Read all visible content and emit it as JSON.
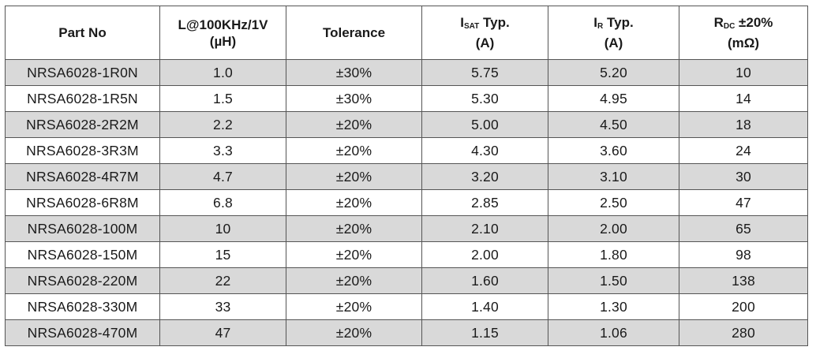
{
  "headers": [
    {
      "lines": [
        "Part No"
      ]
    },
    {
      "lines": [
        "L@100KHz/1V",
        "(µH)"
      ]
    },
    {
      "lines": [
        "Tolerance"
      ]
    },
    {
      "main": "I",
      "sub": "SAT",
      "suffix": " Typ.",
      "unit": "(A)"
    },
    {
      "main": "I",
      "sub": "R",
      "suffix": " Typ.",
      "unit": "(A)"
    },
    {
      "main": "R",
      "sub": "DC",
      "suffix": " ±20%",
      "unit": "(mΩ)"
    }
  ],
  "rows": [
    [
      "NRSA6028-1R0N",
      "1.0",
      "±30%",
      "5.75",
      "5.20",
      "10"
    ],
    [
      "NRSA6028-1R5N",
      "1.5",
      "±30%",
      "5.30",
      "4.95",
      "14"
    ],
    [
      "NRSA6028-2R2M",
      "2.2",
      "±20%",
      "5.00",
      "4.50",
      "18"
    ],
    [
      "NRSA6028-3R3M",
      "3.3",
      "±20%",
      "4.30",
      "3.60",
      "24"
    ],
    [
      "NRSA6028-4R7M",
      "4.7",
      "±20%",
      "3.20",
      "3.10",
      "30"
    ],
    [
      "NRSA6028-6R8M",
      "6.8",
      "±20%",
      "2.85",
      "2.50",
      "47"
    ],
    [
      "NRSA6028-100M",
      "10",
      "±20%",
      "2.10",
      "2.00",
      "65"
    ],
    [
      "NRSA6028-150M",
      "15",
      "±20%",
      "2.00",
      "1.80",
      "98"
    ],
    [
      "NRSA6028-220M",
      "22",
      "±20%",
      "1.60",
      "1.50",
      "138"
    ],
    [
      "NRSA6028-330M",
      "33",
      "±20%",
      "1.40",
      "1.30",
      "200"
    ],
    [
      "NRSA6028-470M",
      "47",
      "±20%",
      "1.15",
      "1.06",
      "280"
    ]
  ],
  "colors": {
    "shaded_row": "#d9d9d9",
    "border": "#555555"
  }
}
